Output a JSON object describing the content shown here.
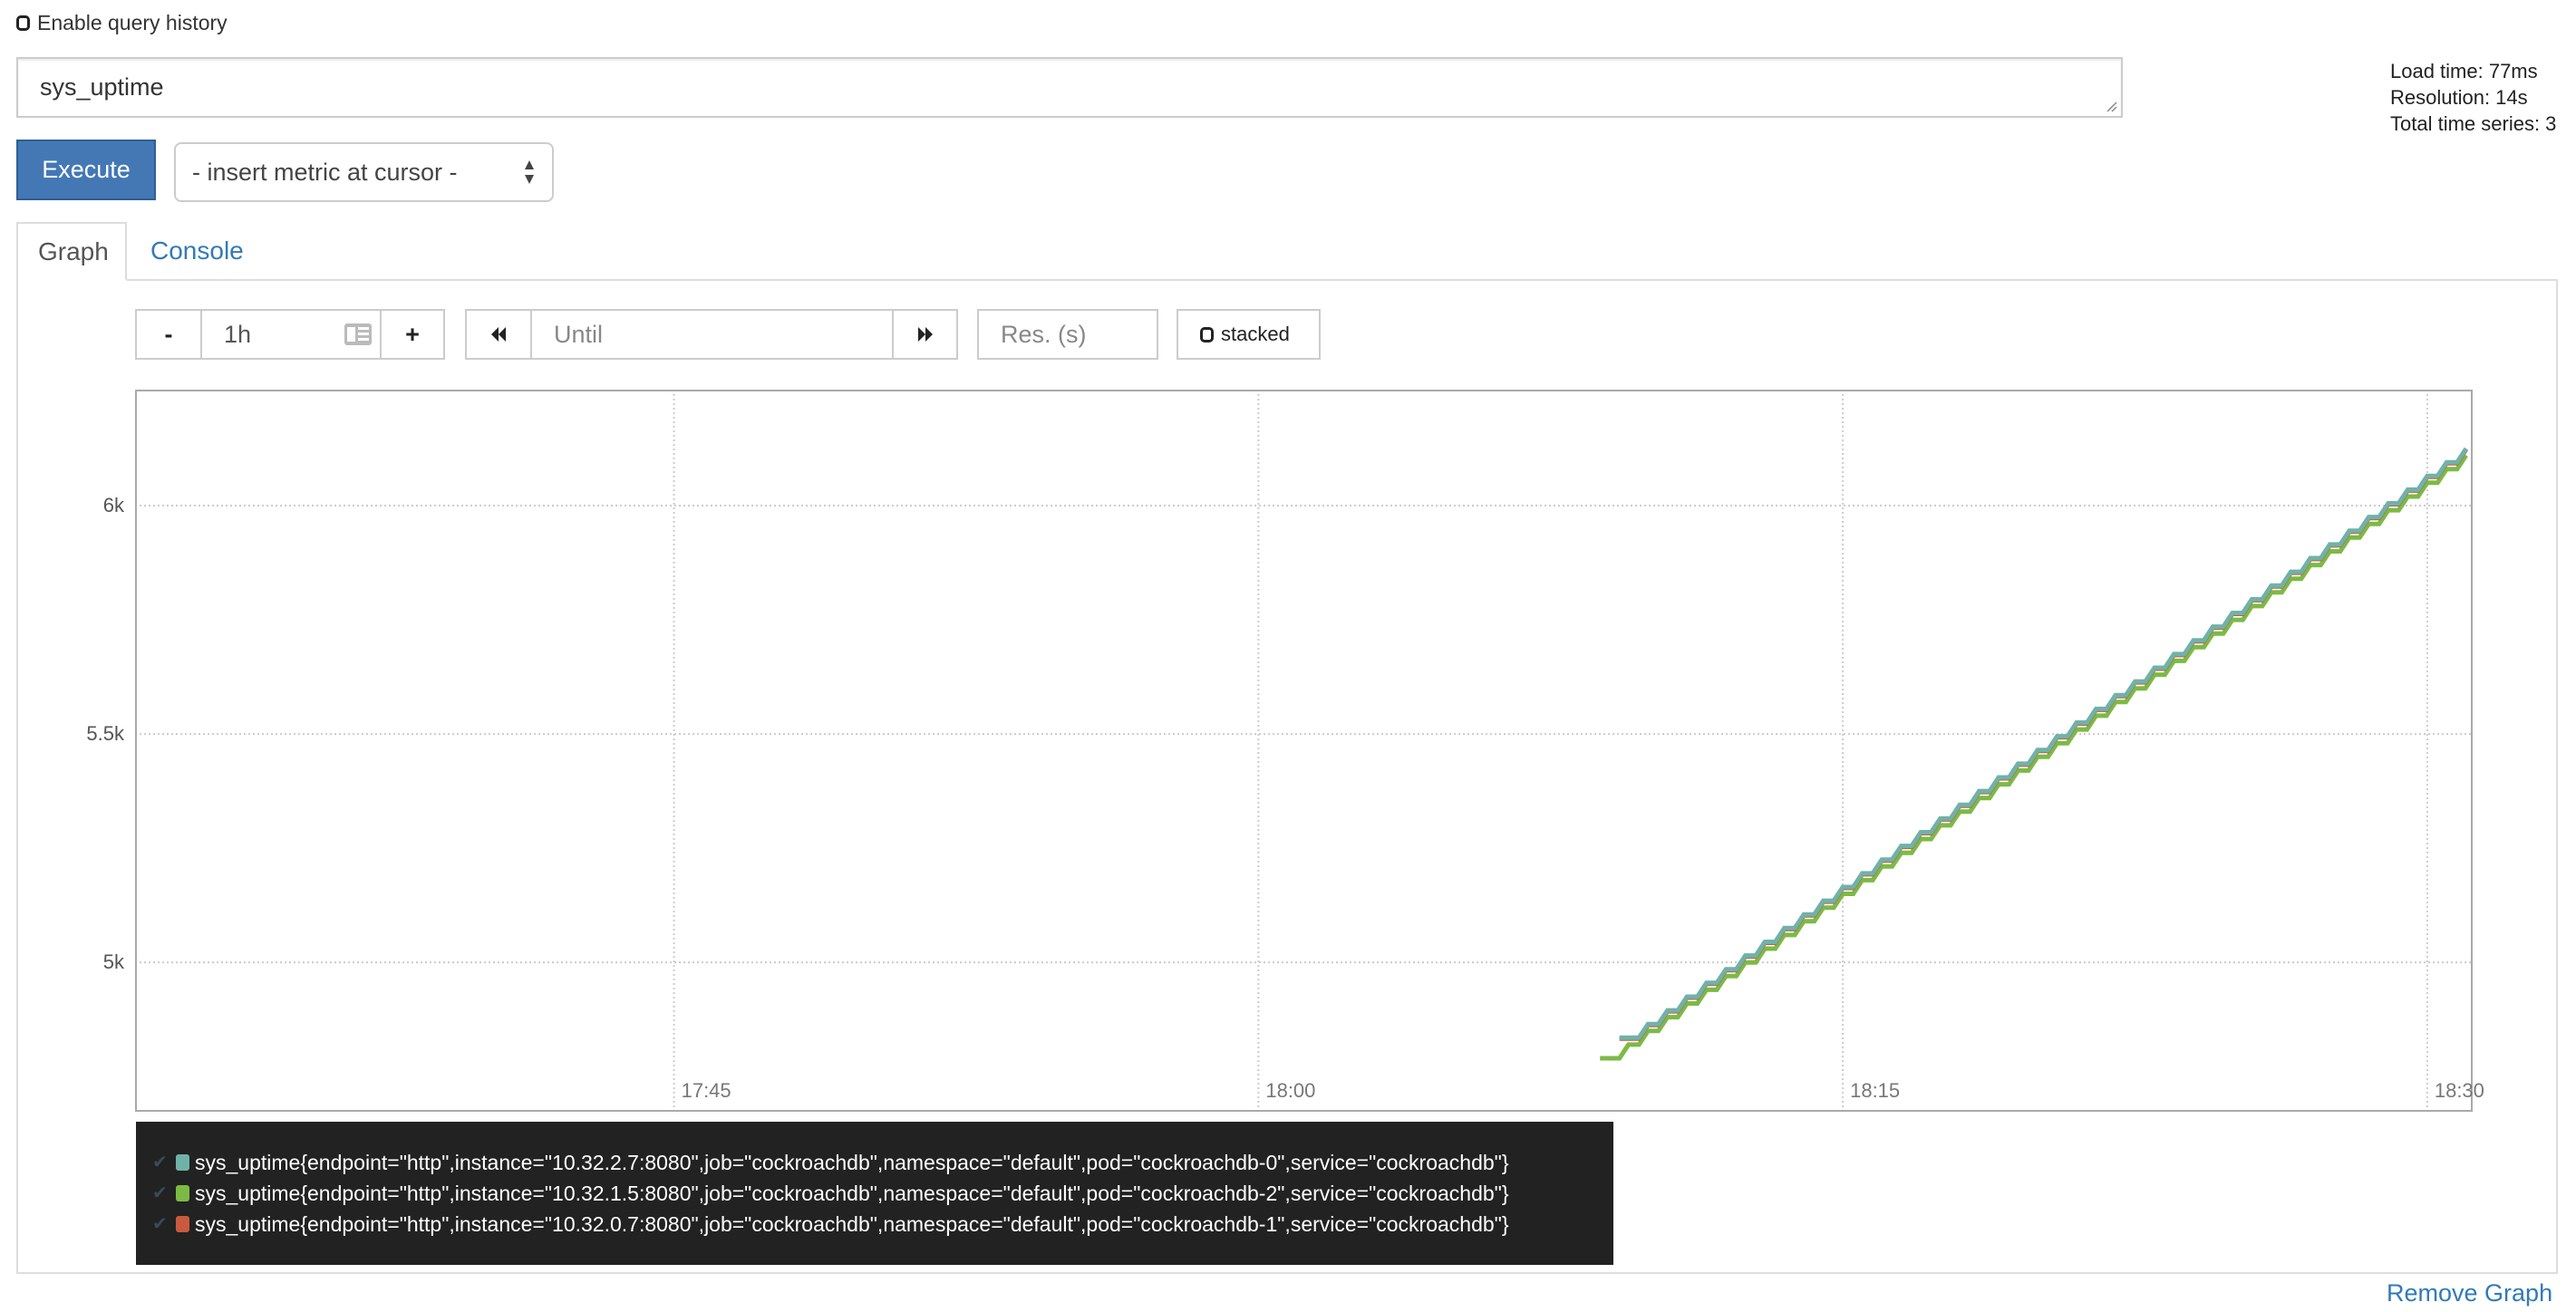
{
  "history": {
    "label": "Enable query history",
    "checked": false
  },
  "query": {
    "value": "sys_uptime"
  },
  "stats": {
    "load_time": "Load time: 77ms",
    "resolution": "Resolution: 14s",
    "total_series": "Total time series: 3"
  },
  "execute_label": "Execute",
  "insert_metric": {
    "selected": "- insert metric at cursor -"
  },
  "tabs": [
    {
      "label": "Graph",
      "active": true
    },
    {
      "label": "Console",
      "active": false
    }
  ],
  "controls": {
    "minus": "-",
    "range": "1h",
    "plus": "+",
    "back": "◀◀",
    "until_placeholder": "Until",
    "forward": "▶▶",
    "res_placeholder": "Res. (s)",
    "stacked_label": "stacked"
  },
  "chart_data": {
    "type": "line",
    "ylim": [
      4673,
      6254
    ],
    "xlim": [
      "17:31:10",
      "18:31:10"
    ],
    "yticks": [
      {
        "value": 5000,
        "label": "5k"
      },
      {
        "value": 5500,
        "label": "5.5k"
      },
      {
        "value": 6000,
        "label": "6k"
      }
    ],
    "xticks": [
      "17:45",
      "18:00",
      "18:15",
      "18:30"
    ],
    "grid": true,
    "legend_position": "bottom",
    "x": [
      "18:09:00",
      "18:09:30",
      "18:10:00",
      "18:10:30",
      "18:11:00",
      "18:11:30",
      "18:12:00",
      "18:12:30",
      "18:13:00",
      "18:13:30",
      "18:14:00",
      "18:14:30",
      "18:15:00",
      "18:15:30",
      "18:16:00",
      "18:16:30",
      "18:17:00",
      "18:17:30",
      "18:18:00",
      "18:18:30",
      "18:19:00",
      "18:19:30",
      "18:20:00",
      "18:20:30",
      "18:21:00",
      "18:21:30",
      "18:22:00",
      "18:22:30",
      "18:23:00",
      "18:23:30",
      "18:24:00",
      "18:24:30",
      "18:25:00",
      "18:25:30",
      "18:26:00",
      "18:26:30",
      "18:27:00",
      "18:27:30",
      "18:28:00",
      "18:28:30",
      "18:29:00",
      "18:29:30",
      "18:30:00",
      "18:30:30",
      "18:31:00"
    ],
    "series": [
      {
        "name": "sys_uptime{endpoint=\"http\",instance=\"10.32.2.7:8080\",job=\"cockroachdb\",namespace=\"default\",pod=\"cockroachdb-0\",service=\"cockroachdb\"}",
        "color": "#70b2a8",
        "values": [
          null,
          4835,
          4865,
          4895,
          4925,
          4955,
          4985,
          5015,
          5045,
          5075,
          5105,
          5135,
          5165,
          5195,
          5225,
          5255,
          5285,
          5315,
          5345,
          5375,
          5405,
          5435,
          5465,
          5495,
          5525,
          5555,
          5585,
          5615,
          5645,
          5675,
          5705,
          5735,
          5765,
          5795,
          5825,
          5855,
          5885,
          5915,
          5945,
          5975,
          6005,
          6035,
          6065,
          6095,
          6125
        ]
      },
      {
        "name": "sys_uptime{endpoint=\"http\",instance=\"10.32.1.5:8080\",job=\"cockroachdb\",namespace=\"default\",pod=\"cockroachdb-2\",service=\"cockroachdb\"}",
        "color": "#7cba45",
        "values": [
          4790,
          4820,
          4850,
          4880,
          4910,
          4940,
          4970,
          5000,
          5030,
          5060,
          5090,
          5120,
          5150,
          5180,
          5210,
          5240,
          5270,
          5300,
          5330,
          5360,
          5390,
          5420,
          5450,
          5480,
          5510,
          5540,
          5570,
          5600,
          5630,
          5660,
          5690,
          5720,
          5750,
          5780,
          5810,
          5840,
          5870,
          5900,
          5930,
          5960,
          5990,
          6020,
          6050,
          6080,
          6110
        ]
      },
      {
        "name": "sys_uptime{endpoint=\"http\",instance=\"10.32.0.7:8080\",job=\"cockroachdb\",namespace=\"default\",pod=\"cockroachdb-1\",service=\"cockroachdb\"}",
        "color": "#c95a3e",
        "values": [
          null,
          4833,
          4863,
          4893,
          4923,
          4953,
          4983,
          5013,
          5043,
          5073,
          5103,
          5133,
          5163,
          5193,
          5223,
          5253,
          5283,
          5313,
          5343,
          5373,
          5403,
          5433,
          5463,
          5493,
          5523,
          5553,
          5583,
          5613,
          5643,
          5673,
          5703,
          5733,
          5763,
          5793,
          5823,
          5853,
          5883,
          5913,
          5943,
          5973,
          6003,
          6033,
          6063,
          6093,
          6123
        ]
      }
    ]
  },
  "remove_graph": "Remove Graph"
}
